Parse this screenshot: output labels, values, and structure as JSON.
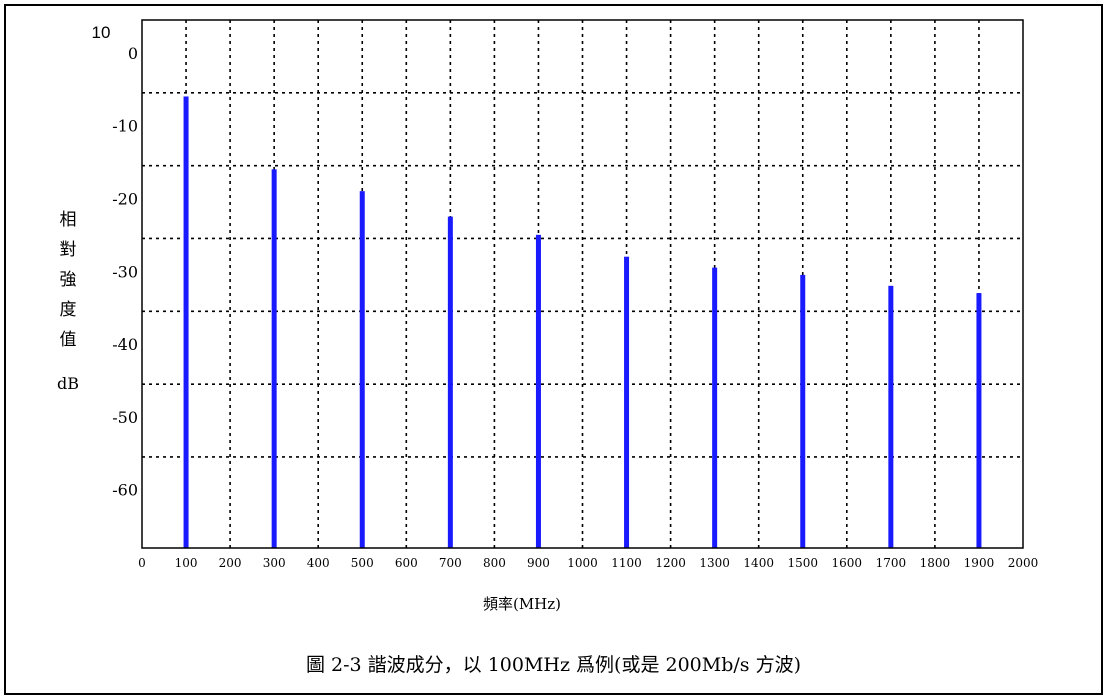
{
  "chart_data": {
    "type": "bar",
    "title": "",
    "xlabel": "頻率(MHz)",
    "ylabel_chars": [
      "相",
      "對",
      "強",
      "度",
      "值"
    ],
    "ylabel_unit": "dB",
    "y_extra_top_label": "10",
    "x_ticks": [
      "0",
      "100",
      "200",
      "300",
      "400",
      "500",
      "600",
      "700",
      "800",
      "900",
      "1000",
      "1100",
      "1200",
      "1300",
      "1400",
      "1500",
      "1600",
      "1700",
      "1800",
      "1900",
      "2000"
    ],
    "y_ticks": [
      "0",
      "-10",
      "-20",
      "-30",
      "-40",
      "-50",
      "-60"
    ],
    "xlim": [
      0,
      2000
    ],
    "ylim": [
      -68,
      4.5
    ],
    "grid": true,
    "bar_color": "#1a1aff",
    "series": [
      {
        "values": [
          {
            "x": 100,
            "y": -6
          },
          {
            "x": 300,
            "y": -16
          },
          {
            "x": 500,
            "y": -19
          },
          {
            "x": 700,
            "y": -22.5
          },
          {
            "x": 900,
            "y": -25
          },
          {
            "x": 1100,
            "y": -28
          },
          {
            "x": 1300,
            "y": -29.5
          },
          {
            "x": 1500,
            "y": -30.5
          },
          {
            "x": 1700,
            "y": -32
          },
          {
            "x": 1900,
            "y": -33
          }
        ]
      }
    ]
  },
  "caption": "圖 2-3 諧波成分，以 100MHz 爲例(或是 200Mb/s 方波)"
}
